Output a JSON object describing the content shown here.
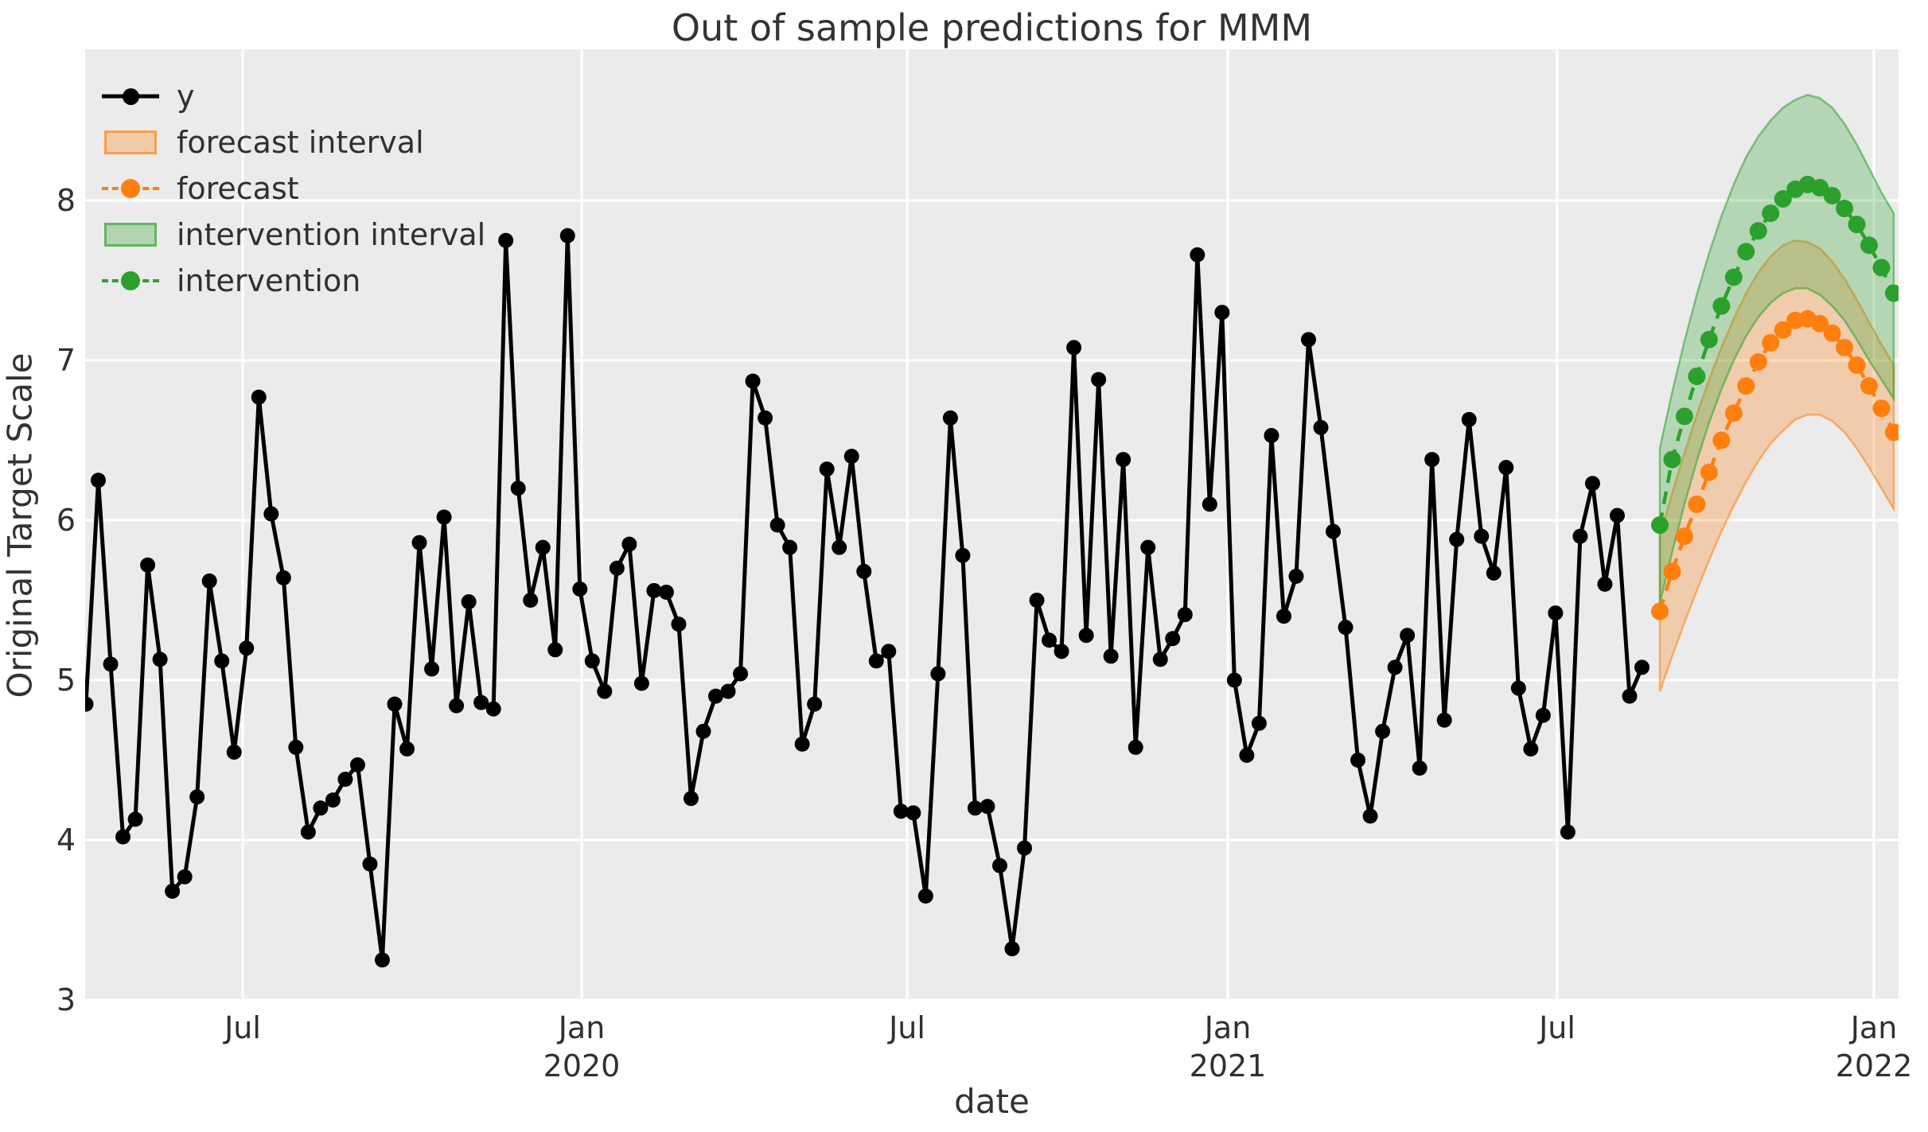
{
  "title": "Out of sample predictions for MMM",
  "axes": {
    "xlabel": "date",
    "ylabel": "Original Target Scale",
    "yticks": [
      "8",
      "7",
      "6",
      "5",
      "4",
      "3"
    ],
    "xticks": [
      {
        "month": "Jul",
        "year": ""
      },
      {
        "month": "Jan",
        "year": "2020"
      },
      {
        "month": "Jul",
        "year": ""
      },
      {
        "month": "Jan",
        "year": "2021"
      },
      {
        "month": "Jul",
        "year": ""
      },
      {
        "month": "Jan",
        "year": "2022"
      }
    ]
  },
  "legend": [
    {
      "label": "y",
      "type": "line-dot",
      "color": "#000000"
    },
    {
      "label": "forecast interval",
      "type": "patch",
      "color": "#ff7f0e"
    },
    {
      "label": "forecast",
      "type": "dash-dot",
      "color": "#ff7f0e"
    },
    {
      "label": "intervention interval",
      "type": "patch",
      "color": "#2ca02c"
    },
    {
      "label": "intervention",
      "type": "dash-dot",
      "color": "#2ca02c"
    }
  ],
  "colors": {
    "plot_background": "#ebebeb",
    "gridline": "#ffffff",
    "observed": "#000000",
    "forecast": "#ff7f0e",
    "intervention": "#2ca02c",
    "text": "#303030"
  },
  "chart_data": {
    "type": "line",
    "title": "Out of sample predictions for MMM",
    "xlabel": "date",
    "ylabel": "Original Target Scale",
    "x_tick_labels": [
      "Jul 2019",
      "Jan 2020",
      "Jul 2020",
      "Jan 2021",
      "Jul 2021",
      "Jan 2022"
    ],
    "y_ticks": [
      8,
      7,
      6,
      5,
      4,
      3
    ],
    "ylim_shown": [
      3,
      8.9
    ],
    "grid": "on",
    "legend_position": "upper left",
    "x_frequency": "weekly (values estimated from pixels, approx. late Mar 2019 through Sep 2021 for y; forecast Sep 2021 through Jan 2022)",
    "series": [
      {
        "name": "y",
        "style": "solid-with-markers",
        "color": "#000000",
        "values": [
          4.85,
          6.25,
          5.1,
          4.02,
          4.13,
          5.72,
          5.13,
          3.68,
          3.77,
          4.27,
          5.62,
          5.12,
          4.55,
          5.2,
          6.77,
          6.04,
          5.64,
          4.58,
          4.05,
          4.2,
          4.25,
          4.38,
          4.47,
          3.85,
          3.25,
          4.85,
          4.57,
          5.86,
          5.07,
          6.02,
          4.84,
          5.49,
          4.86,
          4.82,
          7.75,
          6.2,
          5.5,
          5.83,
          5.19,
          7.78,
          5.57,
          5.12,
          4.93,
          5.7,
          5.85,
          4.98,
          5.56,
          5.55,
          5.35,
          4.26,
          4.68,
          4.9,
          4.93,
          5.04,
          6.87,
          6.64,
          5.97,
          5.83,
          4.6,
          4.85,
          6.32,
          5.83,
          6.4,
          5.68,
          5.12,
          5.18,
          4.18,
          4.17,
          3.65,
          5.04,
          6.64,
          5.78,
          4.2,
          4.21,
          3.84,
          3.32,
          3.95,
          5.5,
          5.25,
          5.18,
          7.08,
          5.28,
          6.88,
          5.15,
          6.38,
          4.58,
          5.83,
          5.13,
          5.26,
          5.41,
          7.66,
          6.1,
          7.3,
          5.0,
          4.53,
          4.73,
          6.53,
          5.4,
          5.65,
          7.13,
          6.58,
          5.93,
          5.33,
          4.5,
          4.15,
          4.68,
          5.08,
          5.28,
          4.45,
          6.38,
          4.75,
          5.88,
          6.63,
          5.9,
          5.67,
          6.33,
          4.95,
          4.57,
          4.78,
          5.42,
          4.05,
          5.9,
          6.23,
          5.6,
          6.03,
          4.9,
          5.08
        ]
      },
      {
        "name": "forecast",
        "style": "dashed-with-markers",
        "color": "#ff7f0e",
        "values": [
          5.43,
          5.68,
          5.9,
          6.1,
          6.3,
          6.5,
          6.67,
          6.84,
          6.99,
          7.11,
          7.19,
          7.25,
          7.26,
          7.23,
          7.17,
          7.08,
          6.97,
          6.84,
          6.7,
          6.55
        ]
      },
      {
        "name": "intervention",
        "style": "dashed-with-markers",
        "color": "#2ca02c",
        "values": [
          5.97,
          6.38,
          6.65,
          6.9,
          7.13,
          7.34,
          7.52,
          7.68,
          7.81,
          7.92,
          8.01,
          8.07,
          8.1,
          8.08,
          8.03,
          7.95,
          7.85,
          7.72,
          7.58,
          7.42
        ]
      }
    ],
    "bands": [
      {
        "name": "forecast interval",
        "color": "#ff7f0e",
        "lower": [
          4.93,
          5.15,
          5.36,
          5.56,
          5.75,
          5.93,
          6.09,
          6.24,
          6.37,
          6.48,
          6.56,
          6.63,
          6.66,
          6.66,
          6.62,
          6.55,
          6.45,
          6.33,
          6.2,
          6.07
        ],
        "upper": [
          5.9,
          6.17,
          6.42,
          6.66,
          6.88,
          7.08,
          7.26,
          7.42,
          7.55,
          7.65,
          7.72,
          7.75,
          7.74,
          7.7,
          7.62,
          7.51,
          7.38,
          7.24,
          7.1,
          6.97
        ]
      },
      {
        "name": "intervention interval",
        "color": "#2ca02c",
        "lower": [
          5.48,
          5.8,
          6.1,
          6.37,
          6.61,
          6.82,
          7.0,
          7.15,
          7.27,
          7.36,
          7.42,
          7.45,
          7.45,
          7.41,
          7.34,
          7.25,
          7.13,
          7.0,
          6.88,
          6.76
        ],
        "upper": [
          6.45,
          6.8,
          7.12,
          7.41,
          7.67,
          7.9,
          8.1,
          8.27,
          8.4,
          8.5,
          8.58,
          8.63,
          8.66,
          8.64,
          8.58,
          8.48,
          8.35,
          8.2,
          8.05,
          7.92
        ]
      }
    ]
  }
}
